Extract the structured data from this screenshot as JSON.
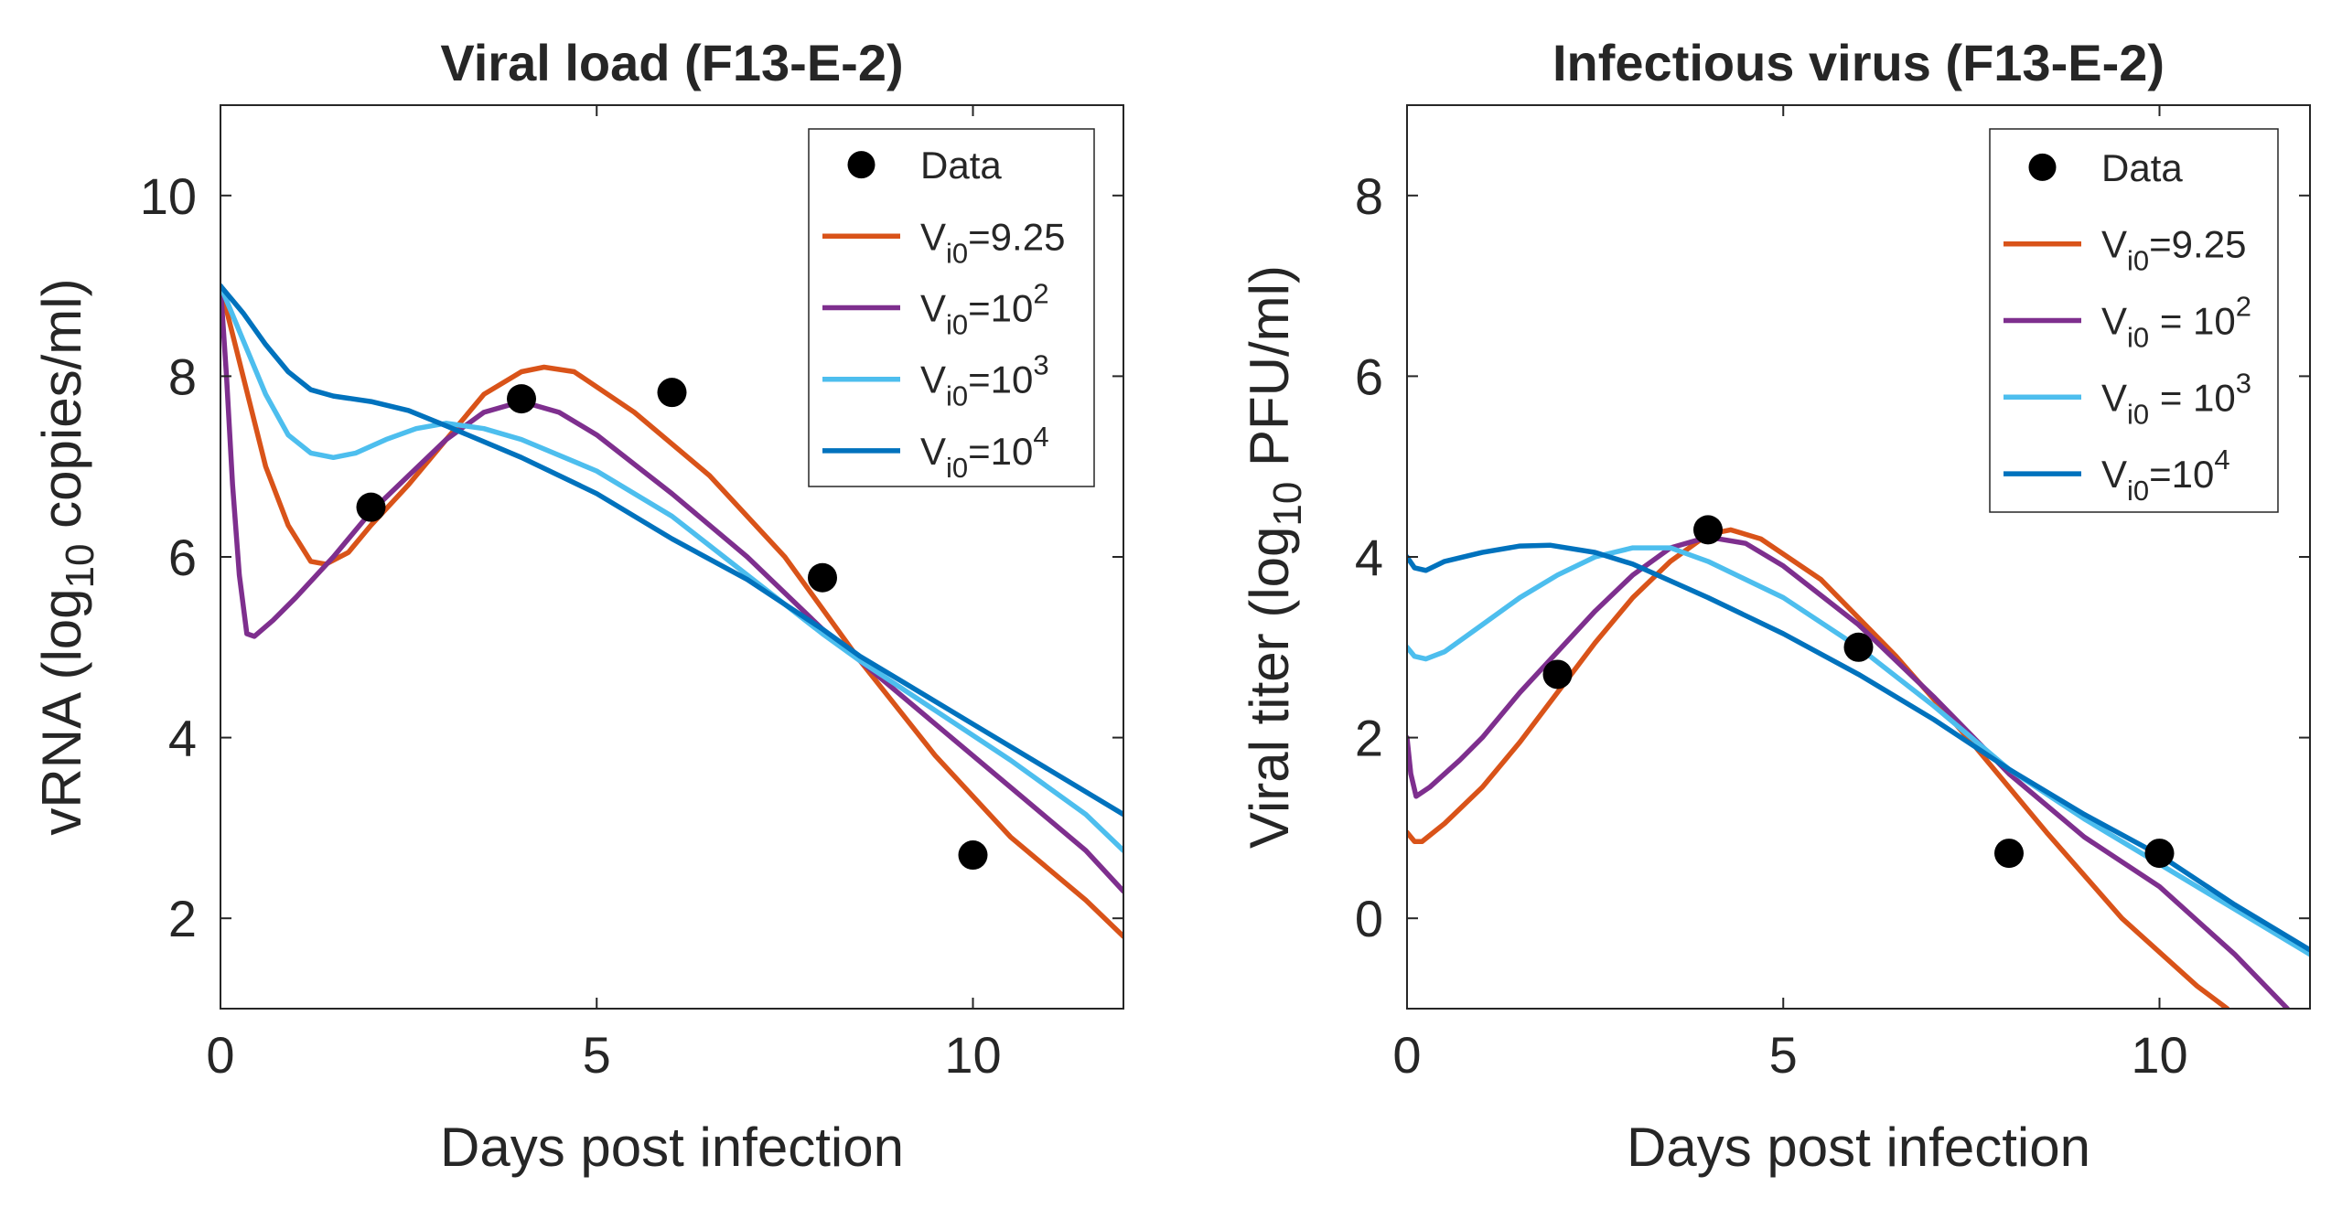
{
  "chart_data": [
    {
      "type": "line",
      "title": "Viral load (F13-E-2)",
      "xlabel": "Days post infection",
      "ylabel": {
        "main": "vRNA  (log",
        "sub": "10",
        "rest": " copies/ml)"
      },
      "xlim": [
        0,
        12
      ],
      "ylim": [
        1,
        11
      ],
      "xticks": [
        0,
        5,
        10
      ],
      "xtick_labels": [
        "0",
        "5",
        "10"
      ],
      "yticks": [
        2,
        4,
        6,
        8,
        10
      ],
      "ytick_labels": [
        "2",
        "4",
        "6",
        "8",
        "10"
      ],
      "legend_position": "top-right",
      "data_points": {
        "name": "Data",
        "x": [
          2,
          4,
          6,
          8,
          10
        ],
        "y": [
          6.55,
          7.75,
          7.82,
          5.77,
          2.7
        ]
      },
      "series": [
        {
          "name": "V_i0=9.25",
          "label_parts": [
            "V",
            "i0",
            "=9.25",
            ""
          ],
          "color": "#D95319",
          "points": [
            [
              0,
              9.0
            ],
            [
              0.3,
              8.0
            ],
            [
              0.6,
              7.0
            ],
            [
              0.9,
              6.35
            ],
            [
              1.2,
              5.95
            ],
            [
              1.4,
              5.92
            ],
            [
              1.7,
              6.05
            ],
            [
              2,
              6.35
            ],
            [
              2.5,
              6.8
            ],
            [
              3,
              7.3
            ],
            [
              3.5,
              7.8
            ],
            [
              4,
              8.05
            ],
            [
              4.3,
              8.1
            ],
            [
              4.7,
              8.05
            ],
            [
              5.5,
              7.6
            ],
            [
              6.5,
              6.9
            ],
            [
              7.5,
              6.0
            ],
            [
              8.5,
              4.85
            ],
            [
              9.5,
              3.8
            ],
            [
              10.5,
              2.9
            ],
            [
              11.5,
              2.2
            ],
            [
              12,
              1.8
            ]
          ]
        },
        {
          "name": "V_i0=10^2",
          "label_parts": [
            "V",
            "i0",
            "=10",
            "2"
          ],
          "color": "#7E2F8E",
          "points": [
            [
              0,
              9.0
            ],
            [
              0.08,
              8.0
            ],
            [
              0.16,
              6.8
            ],
            [
              0.25,
              5.8
            ],
            [
              0.35,
              5.15
            ],
            [
              0.45,
              5.12
            ],
            [
              0.7,
              5.3
            ],
            [
              1,
              5.55
            ],
            [
              1.5,
              6.0
            ],
            [
              2,
              6.5
            ],
            [
              2.5,
              6.9
            ],
            [
              3,
              7.3
            ],
            [
              3.5,
              7.6
            ],
            [
              4,
              7.72
            ],
            [
              4.5,
              7.6
            ],
            [
              5,
              7.35
            ],
            [
              6,
              6.7
            ],
            [
              7,
              6.0
            ],
            [
              8,
              5.2
            ],
            [
              8.5,
              4.85
            ],
            [
              9.5,
              4.15
            ],
            [
              10.5,
              3.45
            ],
            [
              11.5,
              2.75
            ],
            [
              12,
              2.3
            ]
          ]
        },
        {
          "name": "V_i0=10^3",
          "label_parts": [
            "V",
            "i0",
            "=10",
            "3"
          ],
          "color": "#4DBEEE",
          "points": [
            [
              0,
              9.0
            ],
            [
              0.3,
              8.4
            ],
            [
              0.6,
              7.8
            ],
            [
              0.9,
              7.35
            ],
            [
              1.2,
              7.15
            ],
            [
              1.5,
              7.1
            ],
            [
              1.8,
              7.15
            ],
            [
              2.2,
              7.3
            ],
            [
              2.6,
              7.42
            ],
            [
              3,
              7.48
            ],
            [
              3.5,
              7.42
            ],
            [
              4,
              7.3
            ],
            [
              5,
              6.95
            ],
            [
              6,
              6.45
            ],
            [
              7,
              5.8
            ],
            [
              8,
              5.15
            ],
            [
              8.5,
              4.85
            ],
            [
              9.5,
              4.3
            ],
            [
              10.5,
              3.75
            ],
            [
              11.5,
              3.15
            ],
            [
              12,
              2.75
            ]
          ]
        },
        {
          "name": "V_i0=10^4",
          "label_parts": [
            "V",
            "i0",
            "=10",
            "4"
          ],
          "color": "#0072BD",
          "points": [
            [
              0,
              9.0
            ],
            [
              0.3,
              8.7
            ],
            [
              0.6,
              8.35
            ],
            [
              0.9,
              8.05
            ],
            [
              1.2,
              7.85
            ],
            [
              1.5,
              7.78
            ],
            [
              2,
              7.72
            ],
            [
              2.5,
              7.62
            ],
            [
              3,
              7.45
            ],
            [
              4,
              7.1
            ],
            [
              5,
              6.7
            ],
            [
              6,
              6.2
            ],
            [
              7,
              5.75
            ],
            [
              8,
              5.2
            ],
            [
              8.5,
              4.9
            ],
            [
              9,
              4.65
            ],
            [
              10,
              4.15
            ],
            [
              11,
              3.65
            ],
            [
              12,
              3.15
            ]
          ]
        }
      ]
    },
    {
      "type": "line",
      "title": "Infectious virus (F13-E-2)",
      "xlabel": "Days post infection",
      "ylabel": {
        "main": "Viral titer (log",
        "sub": "10",
        "rest": " PFU/ml)"
      },
      "xlim": [
        0,
        12
      ],
      "ylim": [
        -1,
        9
      ],
      "xticks": [
        0,
        5,
        10
      ],
      "xtick_labels": [
        "0",
        "5",
        "10"
      ],
      "yticks": [
        0,
        2,
        4,
        6,
        8
      ],
      "ytick_labels": [
        "0",
        "2",
        "4",
        "6",
        "8"
      ],
      "legend_position": "top-right",
      "data_points": {
        "name": "Data",
        "x": [
          2,
          4,
          6,
          8,
          10
        ],
        "y": [
          2.7,
          4.3,
          3.0,
          0.72,
          0.72
        ]
      },
      "series": [
        {
          "name": "V_i0=9.25",
          "label_parts": [
            "V",
            "i0",
            "=9.25",
            ""
          ],
          "color": "#D95319",
          "points": [
            [
              0,
              0.95
            ],
            [
              0.1,
              0.85
            ],
            [
              0.2,
              0.85
            ],
            [
              0.5,
              1.05
            ],
            [
              1,
              1.45
            ],
            [
              1.5,
              1.95
            ],
            [
              2,
              2.5
            ],
            [
              2.5,
              3.05
            ],
            [
              3,
              3.55
            ],
            [
              3.5,
              3.95
            ],
            [
              4,
              4.25
            ],
            [
              4.3,
              4.3
            ],
            [
              4.7,
              4.2
            ],
            [
              5.5,
              3.75
            ],
            [
              6.5,
              2.9
            ],
            [
              7.5,
              1.95
            ],
            [
              8.5,
              0.95
            ],
            [
              9.5,
              0.0
            ],
            [
              10.5,
              -0.75
            ],
            [
              10.9,
              -1.0
            ]
          ]
        },
        {
          "name": "V_i0 = 10^2",
          "label_parts": [
            "V",
            "i0",
            " = 10",
            "2"
          ],
          "color": "#7E2F8E",
          "points": [
            [
              0,
              2.0
            ],
            [
              0.05,
              1.6
            ],
            [
              0.12,
              1.35
            ],
            [
              0.3,
              1.45
            ],
            [
              0.7,
              1.75
            ],
            [
              1,
              2.0
            ],
            [
              1.5,
              2.5
            ],
            [
              2,
              2.95
            ],
            [
              2.5,
              3.4
            ],
            [
              3,
              3.8
            ],
            [
              3.5,
              4.1
            ],
            [
              4,
              4.22
            ],
            [
              4.5,
              4.15
            ],
            [
              5,
              3.9
            ],
            [
              6,
              3.25
            ],
            [
              7,
              2.45
            ],
            [
              8,
              1.6
            ],
            [
              9,
              0.9
            ],
            [
              10,
              0.35
            ],
            [
              11,
              -0.4
            ],
            [
              11.7,
              -1.0
            ]
          ]
        },
        {
          "name": "V_i0 = 10^3",
          "label_parts": [
            "V",
            "i0",
            " = 10",
            "3"
          ],
          "color": "#4DBEEE",
          "points": [
            [
              0,
              3.0
            ],
            [
              0.1,
              2.9
            ],
            [
              0.25,
              2.87
            ],
            [
              0.5,
              2.95
            ],
            [
              1,
              3.25
            ],
            [
              1.5,
              3.55
            ],
            [
              2,
              3.8
            ],
            [
              2.5,
              4.0
            ],
            [
              3,
              4.1
            ],
            [
              3.5,
              4.1
            ],
            [
              4,
              3.95
            ],
            [
              5,
              3.55
            ],
            [
              6,
              3.0
            ],
            [
              7,
              2.35
            ],
            [
              8,
              1.65
            ],
            [
              9,
              1.1
            ],
            [
              10,
              0.6
            ],
            [
              11,
              0.1
            ],
            [
              12,
              -0.4
            ]
          ]
        },
        {
          "name": "V_i0=10^4",
          "label_parts": [
            "V",
            "i0",
            "=10",
            "4"
          ],
          "color": "#0072BD",
          "points": [
            [
              0,
              4.0
            ],
            [
              0.1,
              3.88
            ],
            [
              0.25,
              3.85
            ],
            [
              0.5,
              3.95
            ],
            [
              1,
              4.05
            ],
            [
              1.5,
              4.12
            ],
            [
              1.9,
              4.13
            ],
            [
              2.5,
              4.05
            ],
            [
              3,
              3.92
            ],
            [
              4,
              3.55
            ],
            [
              5,
              3.15
            ],
            [
              6,
              2.7
            ],
            [
              7,
              2.2
            ],
            [
              8,
              1.65
            ],
            [
              9,
              1.15
            ],
            [
              10,
              0.7
            ],
            [
              11,
              0.15
            ],
            [
              12,
              -0.35
            ]
          ]
        }
      ]
    }
  ]
}
